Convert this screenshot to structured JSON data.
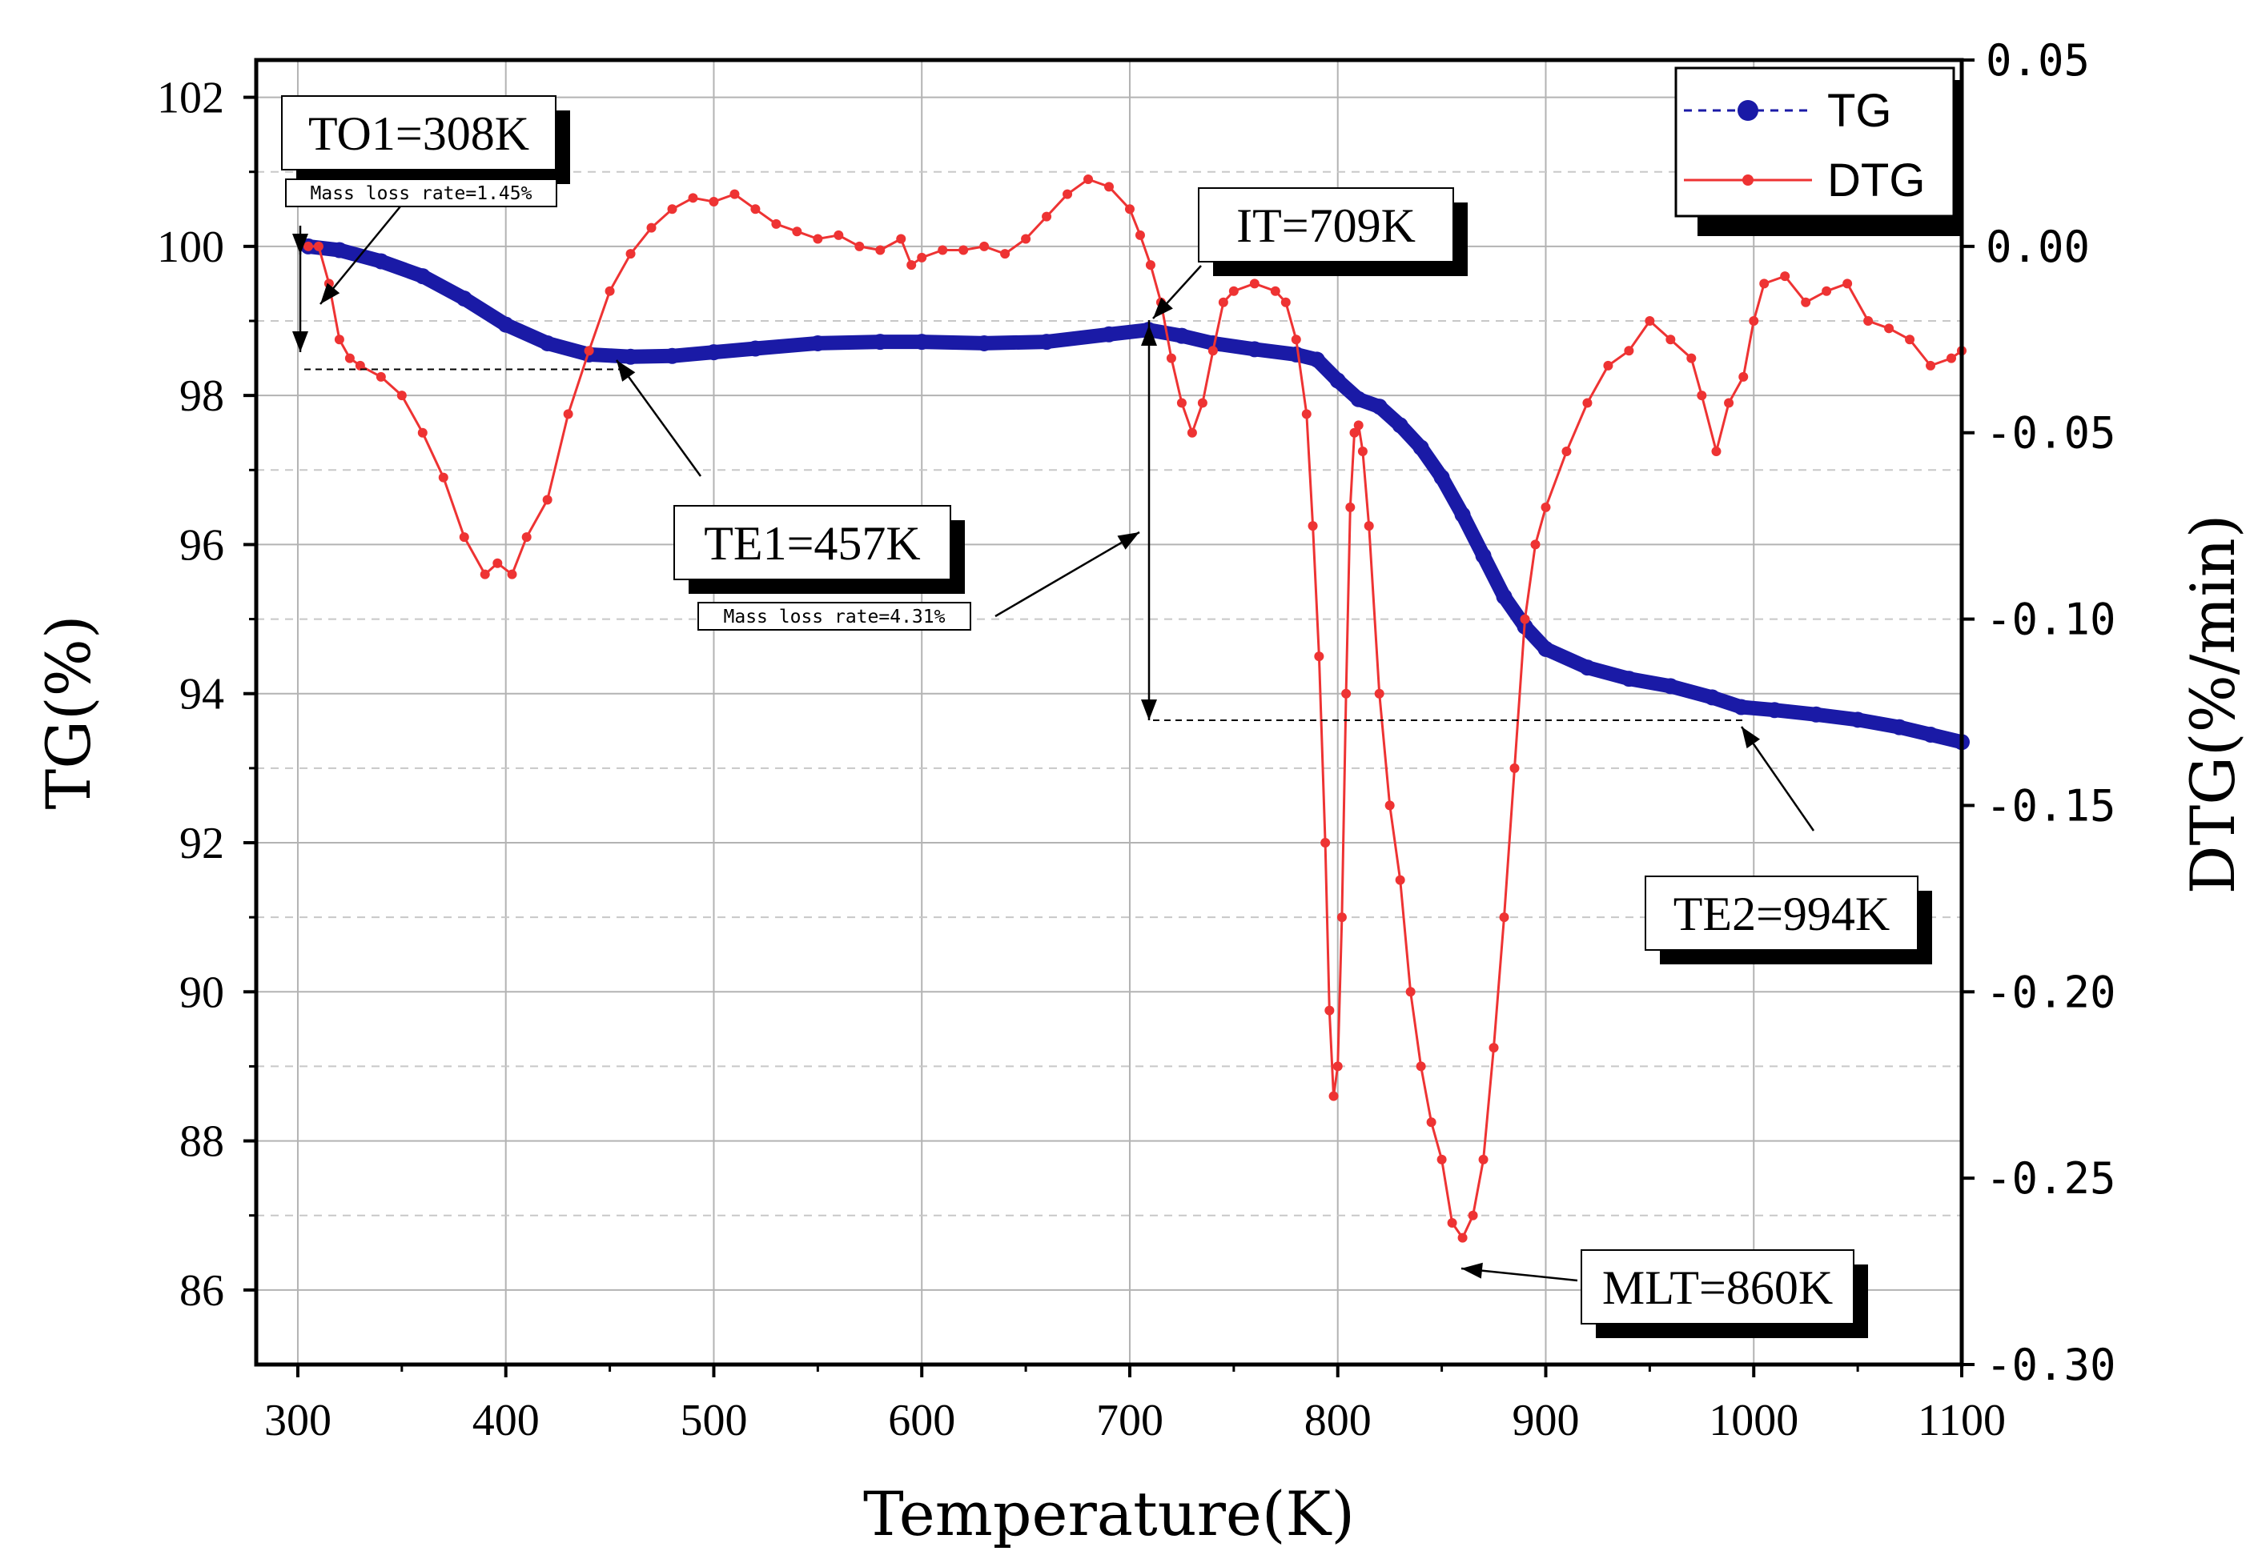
{
  "chart_data": {
    "type": "line",
    "xlabel": "Temperature(K)",
    "ylabel": "TG(%)",
    "y2label": "DTG(%/min)",
    "xlim": [
      280,
      1100
    ],
    "ylim": [
      85,
      102.5
    ],
    "y2lim": [
      -0.3,
      0.05
    ],
    "xticks": [
      "300",
      "400",
      "500",
      "600",
      "700",
      "800",
      "900",
      "1000",
      "1100"
    ],
    "yticks": [
      "86",
      "88",
      "90",
      "92",
      "94",
      "96",
      "98",
      "100",
      "102"
    ],
    "y2ticks": [
      "-0.30",
      "-0.25",
      "-0.20",
      "-0.15",
      "-0.10",
      "-0.05",
      "0.00",
      "0.05"
    ],
    "legend": [
      {
        "name": "TG",
        "color": "#1a1aa6",
        "marker": "circle",
        "line": "dashed"
      },
      {
        "name": "DTG",
        "color": "#ee3333",
        "marker": "dot",
        "line": "solid"
      }
    ],
    "series": [
      {
        "name": "TG",
        "axis": "left",
        "color": "#1a1aa6",
        "points": [
          [
            305,
            100.0
          ],
          [
            320,
            99.95
          ],
          [
            340,
            99.8
          ],
          [
            360,
            99.6
          ],
          [
            380,
            99.3
          ],
          [
            400,
            98.95
          ],
          [
            420,
            98.7
          ],
          [
            440,
            98.55
          ],
          [
            460,
            98.52
          ],
          [
            480,
            98.53
          ],
          [
            500,
            98.58
          ],
          [
            520,
            98.63
          ],
          [
            550,
            98.7
          ],
          [
            580,
            98.72
          ],
          [
            600,
            98.72
          ],
          [
            630,
            98.7
          ],
          [
            660,
            98.72
          ],
          [
            690,
            98.82
          ],
          [
            709,
            98.88
          ],
          [
            725,
            98.8
          ],
          [
            740,
            98.7
          ],
          [
            760,
            98.62
          ],
          [
            780,
            98.55
          ],
          [
            790,
            98.48
          ],
          [
            800,
            98.2
          ],
          [
            810,
            97.95
          ],
          [
            820,
            97.85
          ],
          [
            830,
            97.6
          ],
          [
            840,
            97.3
          ],
          [
            850,
            96.9
          ],
          [
            860,
            96.4
          ],
          [
            870,
            95.85
          ],
          [
            880,
            95.3
          ],
          [
            890,
            94.9
          ],
          [
            900,
            94.6
          ],
          [
            920,
            94.35
          ],
          [
            940,
            94.2
          ],
          [
            960,
            94.1
          ],
          [
            980,
            93.95
          ],
          [
            994,
            93.82
          ],
          [
            1010,
            93.78
          ],
          [
            1030,
            93.72
          ],
          [
            1050,
            93.65
          ],
          [
            1070,
            93.55
          ],
          [
            1085,
            93.45
          ],
          [
            1100,
            93.35
          ]
        ]
      },
      {
        "name": "DTG",
        "axis": "right",
        "color": "#ee3333",
        "points": [
          [
            305,
            0.0
          ],
          [
            310,
            0.0
          ],
          [
            315,
            -0.01
          ],
          [
            320,
            -0.025
          ],
          [
            325,
            -0.03
          ],
          [
            330,
            -0.032
          ],
          [
            340,
            -0.035
          ],
          [
            350,
            -0.04
          ],
          [
            360,
            -0.05
          ],
          [
            370,
            -0.062
          ],
          [
            380,
            -0.078
          ],
          [
            390,
            -0.088
          ],
          [
            396,
            -0.085
          ],
          [
            403,
            -0.088
          ],
          [
            410,
            -0.078
          ],
          [
            420,
            -0.068
          ],
          [
            430,
            -0.045
          ],
          [
            440,
            -0.028
          ],
          [
            450,
            -0.012
          ],
          [
            460,
            -0.002
          ],
          [
            470,
            0.005
          ],
          [
            480,
            0.01
          ],
          [
            490,
            0.013
          ],
          [
            500,
            0.012
          ],
          [
            510,
            0.014
          ],
          [
            520,
            0.01
          ],
          [
            530,
            0.006
          ],
          [
            540,
            0.004
          ],
          [
            550,
            0.002
          ],
          [
            560,
            0.003
          ],
          [
            570,
            0.0
          ],
          [
            580,
            -0.001
          ],
          [
            590,
            0.002
          ],
          [
            595,
            -0.005
          ],
          [
            600,
            -0.003
          ],
          [
            610,
            -0.001
          ],
          [
            620,
            -0.001
          ],
          [
            630,
            0.0
          ],
          [
            640,
            -0.002
          ],
          [
            650,
            0.002
          ],
          [
            660,
            0.008
          ],
          [
            670,
            0.014
          ],
          [
            680,
            0.018
          ],
          [
            690,
            0.016
          ],
          [
            700,
            0.01
          ],
          [
            705,
            0.003
          ],
          [
            710,
            -0.005
          ],
          [
            715,
            -0.015
          ],
          [
            720,
            -0.03
          ],
          [
            725,
            -0.042
          ],
          [
            730,
            -0.05
          ],
          [
            735,
            -0.042
          ],
          [
            740,
            -0.028
          ],
          [
            745,
            -0.015
          ],
          [
            750,
            -0.012
          ],
          [
            760,
            -0.01
          ],
          [
            770,
            -0.012
          ],
          [
            775,
            -0.015
          ],
          [
            780,
            -0.025
          ],
          [
            785,
            -0.045
          ],
          [
            788,
            -0.075
          ],
          [
            791,
            -0.11
          ],
          [
            794,
            -0.16
          ],
          [
            796,
            -0.205
          ],
          [
            798,
            -0.228
          ],
          [
            800,
            -0.22
          ],
          [
            802,
            -0.18
          ],
          [
            804,
            -0.12
          ],
          [
            806,
            -0.07
          ],
          [
            808,
            -0.05
          ],
          [
            810,
            -0.048
          ],
          [
            812,
            -0.055
          ],
          [
            815,
            -0.075
          ],
          [
            820,
            -0.12
          ],
          [
            825,
            -0.15
          ],
          [
            830,
            -0.17
          ],
          [
            835,
            -0.2
          ],
          [
            840,
            -0.22
          ],
          [
            845,
            -0.235
          ],
          [
            850,
            -0.245
          ],
          [
            855,
            -0.262
          ],
          [
            860,
            -0.266
          ],
          [
            865,
            -0.26
          ],
          [
            870,
            -0.245
          ],
          [
            875,
            -0.215
          ],
          [
            880,
            -0.18
          ],
          [
            885,
            -0.14
          ],
          [
            890,
            -0.1
          ],
          [
            895,
            -0.08
          ],
          [
            900,
            -0.07
          ],
          [
            910,
            -0.055
          ],
          [
            920,
            -0.042
          ],
          [
            930,
            -0.032
          ],
          [
            940,
            -0.028
          ],
          [
            950,
            -0.02
          ],
          [
            960,
            -0.025
          ],
          [
            970,
            -0.03
          ],
          [
            975,
            -0.04
          ],
          [
            982,
            -0.055
          ],
          [
            988,
            -0.042
          ],
          [
            995,
            -0.035
          ],
          [
            1000,
            -0.02
          ],
          [
            1005,
            -0.01
          ],
          [
            1015,
            -0.008
          ],
          [
            1025,
            -0.015
          ],
          [
            1035,
            -0.012
          ],
          [
            1045,
            -0.01
          ],
          [
            1055,
            -0.02
          ],
          [
            1065,
            -0.022
          ],
          [
            1075,
            -0.025
          ],
          [
            1085,
            -0.032
          ],
          [
            1095,
            -0.03
          ],
          [
            1100,
            -0.028
          ]
        ]
      }
    ],
    "annotations": [
      {
        "id": "to1",
        "text": "TO1=308K"
      },
      {
        "id": "mlr1",
        "text": "Mass loss rate=1.45%"
      },
      {
        "id": "it",
        "text": "IT=709K"
      },
      {
        "id": "te1",
        "text": "TE1=457K"
      },
      {
        "id": "mlr2",
        "text": "Mass loss rate=4.31%"
      },
      {
        "id": "te2",
        "text": "TE2=994K"
      },
      {
        "id": "mlt",
        "text": "MLT=860K"
      }
    ]
  }
}
